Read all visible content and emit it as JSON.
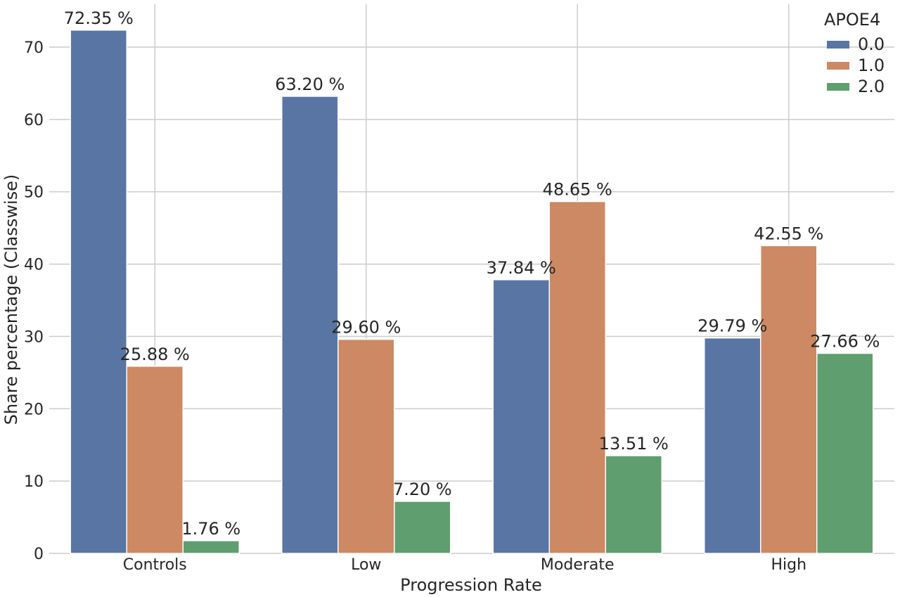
{
  "chart_data": {
    "type": "bar",
    "title": "",
    "xlabel": "Progression Rate",
    "ylabel": "Share percentage (Classwise)",
    "categories": [
      "Controls",
      "Low",
      "Moderate",
      "High"
    ],
    "ylim": [
      0,
      75
    ],
    "yticks": [
      0,
      10,
      20,
      30,
      40,
      50,
      60,
      70
    ],
    "grid": true,
    "legend": {
      "title": "APOE4",
      "placement": "top-right"
    },
    "series": [
      {
        "name": "0.0",
        "color": "#5975a4",
        "values": [
          72.35,
          63.2,
          37.84,
          29.79
        ],
        "labels": [
          "72.35 %",
          "63.20 %",
          "37.84 %",
          "29.79 %"
        ]
      },
      {
        "name": "1.0",
        "color": "#cc8963",
        "values": [
          25.88,
          29.6,
          48.65,
          42.55
        ],
        "labels": [
          "25.88 %",
          "29.60 %",
          "48.65 %",
          "42.55 %"
        ]
      },
      {
        "name": "2.0",
        "color": "#5f9e6e",
        "values": [
          1.76,
          7.2,
          13.51,
          27.66
        ],
        "labels": [
          "1.76 %",
          "7.20 %",
          "13.51 %",
          "27.66 %"
        ]
      }
    ]
  }
}
